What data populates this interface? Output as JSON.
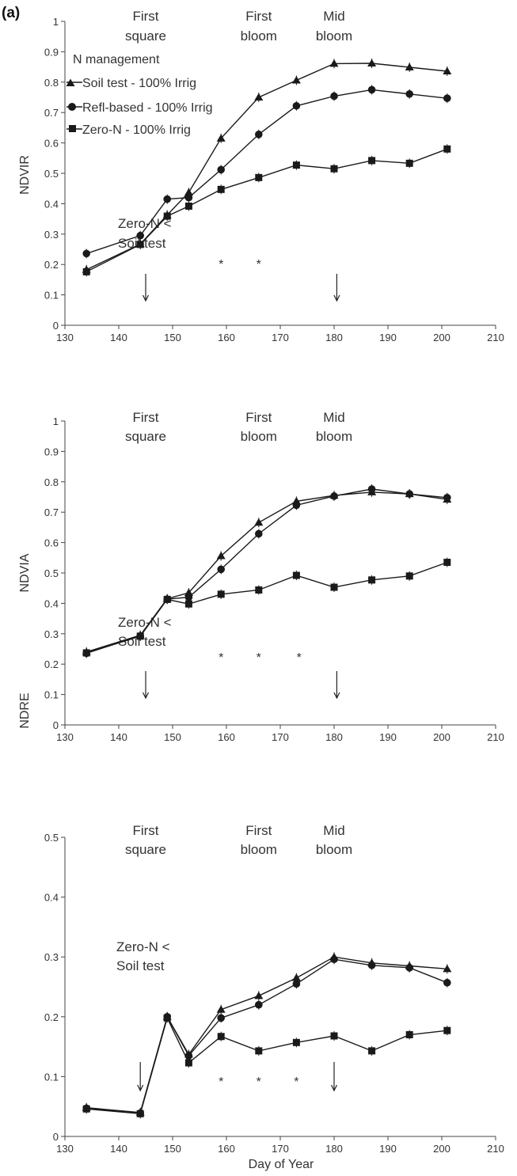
{
  "panel_label": "(a)",
  "xlabel": "Day of Year",
  "legend": {
    "title": "N management",
    "entries": [
      "Soil test - 100% Irrig",
      "Refl-based - 100% Irrig",
      "Zero-N - 100% Irrig"
    ]
  },
  "colors": {
    "series": "#1a1a1a",
    "axis": "#444444",
    "text": "#333333"
  },
  "chart_data": [
    {
      "type": "line",
      "ylabel": "NDVIR",
      "xlim": [
        130,
        210
      ],
      "ylim": [
        0,
        1
      ],
      "xticks": [
        130,
        140,
        150,
        160,
        170,
        180,
        190,
        200,
        210
      ],
      "yticks": [
        0,
        0.1,
        0.2,
        0.3,
        0.4,
        0.5,
        0.6,
        0.7,
        0.8,
        0.9,
        1
      ],
      "x": [
        134,
        144,
        149,
        153,
        159,
        166,
        173,
        180,
        187,
        194,
        201
      ],
      "series": [
        {
          "name": "Soil test - 100% Irrig",
          "marker": "triangle",
          "values": [
            0.183,
            0.267,
            0.363,
            0.437,
            0.615,
            0.75,
            0.806,
            0.861,
            0.862,
            0.849,
            0.836
          ]
        },
        {
          "name": "Refl-based - 100% Irrig",
          "marker": "circle",
          "values": [
            0.236,
            0.295,
            0.415,
            0.42,
            0.512,
            0.628,
            0.722,
            0.754,
            0.775,
            0.761,
            0.747
          ]
        },
        {
          "name": "Zero-N - 100% Irrig",
          "marker": "square",
          "values": [
            0.176,
            0.266,
            0.359,
            0.392,
            0.447,
            0.486,
            0.527,
            0.515,
            0.542,
            0.533,
            0.58
          ]
        }
      ],
      "stage_labels": [
        {
          "x": 145,
          "lines": [
            "First",
            "square"
          ]
        },
        {
          "x": 166,
          "lines": [
            "First",
            "bloom"
          ]
        },
        {
          "x": 180,
          "lines": [
            "Mid",
            "bloom"
          ]
        }
      ],
      "arrows": [
        145,
        180.5
      ],
      "annotation": {
        "lines": [
          "Zero-N <",
          "Soil test"
        ]
      },
      "asterisks": [
        159,
        166
      ]
    },
    {
      "type": "line",
      "ylabel": "NDVIA",
      "xlim": [
        130,
        210
      ],
      "ylim": [
        0,
        1
      ],
      "xticks": [
        130,
        140,
        150,
        160,
        170,
        180,
        190,
        200,
        210
      ],
      "yticks": [
        0,
        0.1,
        0.2,
        0.3,
        0.4,
        0.5,
        0.6,
        0.7,
        0.8,
        0.9,
        1
      ],
      "x": [
        134,
        144,
        149,
        153,
        159,
        166,
        173,
        180,
        187,
        194,
        201
      ],
      "series": [
        {
          "name": "Soil test - 100% Irrig",
          "marker": "triangle",
          "values": [
            0.24,
            0.295,
            0.415,
            0.435,
            0.556,
            0.666,
            0.736,
            0.755,
            0.766,
            0.76,
            0.742
          ]
        },
        {
          "name": "Refl-based - 100% Irrig",
          "marker": "circle",
          "values": [
            0.236,
            0.293,
            0.414,
            0.42,
            0.512,
            0.629,
            0.723,
            0.753,
            0.776,
            0.76,
            0.748
          ]
        },
        {
          "name": "Zero-N - 100% Irrig",
          "marker": "square",
          "values": [
            0.237,
            0.292,
            0.413,
            0.398,
            0.43,
            0.444,
            0.492,
            0.453,
            0.477,
            0.49,
            0.535
          ]
        }
      ],
      "stage_labels": [
        {
          "x": 145,
          "lines": [
            "First",
            "square"
          ]
        },
        {
          "x": 166,
          "lines": [
            "First",
            "bloom"
          ]
        },
        {
          "x": 180,
          "lines": [
            "Mid",
            "bloom"
          ]
        }
      ],
      "arrows": [
        145,
        180.5
      ],
      "annotation": {
        "lines": [
          "Zero-N <",
          "Soil test"
        ]
      },
      "asterisks": [
        159,
        166,
        173.5
      ]
    },
    {
      "type": "line",
      "ylabel": "NDRE",
      "xlim": [
        130,
        210
      ],
      "ylim": [
        0,
        0.5
      ],
      "xticks": [
        130,
        140,
        150,
        160,
        170,
        180,
        190,
        200,
        210
      ],
      "yticks": [
        0,
        0.1,
        0.2,
        0.3,
        0.4,
        0.5
      ],
      "x": [
        134,
        144,
        149,
        153,
        159,
        166,
        173,
        180,
        187,
        194,
        201
      ],
      "series": [
        {
          "name": "Soil test - 100% Irrig",
          "marker": "triangle",
          "values": [
            0.048,
            0.04,
            0.2,
            0.137,
            0.212,
            0.235,
            0.265,
            0.3,
            0.29,
            0.285,
            0.28
          ]
        },
        {
          "name": "Refl-based - 100% Irrig",
          "marker": "circle",
          "values": [
            0.047,
            0.039,
            0.2,
            0.135,
            0.198,
            0.22,
            0.255,
            0.296,
            0.286,
            0.282,
            0.257
          ]
        },
        {
          "name": "Zero-N - 100% Irrig",
          "marker": "square",
          "values": [
            0.046,
            0.038,
            0.198,
            0.123,
            0.167,
            0.143,
            0.157,
            0.168,
            0.143,
            0.17,
            0.177
          ]
        }
      ],
      "stage_labels": [
        {
          "x": 145,
          "lines": [
            "First",
            "square"
          ]
        },
        {
          "x": 166,
          "lines": [
            "First",
            "bloom"
          ]
        },
        {
          "x": 180,
          "lines": [
            "Mid",
            "bloom"
          ]
        }
      ],
      "arrows": [
        144,
        180
      ],
      "annotation": {
        "lines": [
          "Zero-N <",
          "Soil test"
        ]
      },
      "asterisks": [
        159,
        166,
        173
      ]
    }
  ]
}
